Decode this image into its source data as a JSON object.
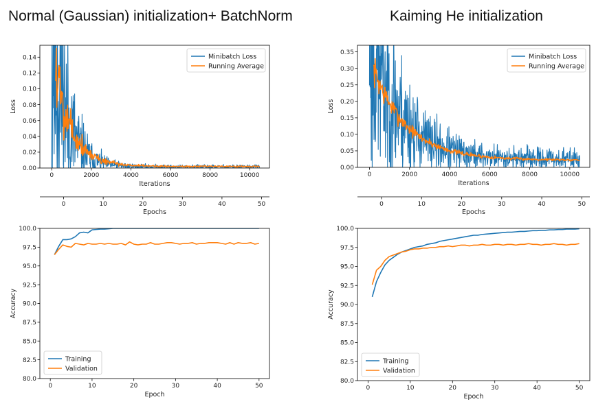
{
  "headings": {
    "left": "Normal (Gaussian) initialization+ BatchNorm",
    "right": "Kaiming He initialization"
  },
  "colors": {
    "blue": "#1f77b4",
    "orange": "#ff7f0e"
  },
  "chart_data": [
    {
      "id": "left-loss",
      "type": "line",
      "xlabel": "Iterations",
      "ylabel": "Loss",
      "xlim": [
        -600,
        11000
      ],
      "ylim": [
        0,
        0.155
      ],
      "xticks": [
        0,
        2000,
        4000,
        6000,
        8000,
        10000
      ],
      "yticks": [
        0.0,
        0.02,
        0.04,
        0.06,
        0.08,
        0.1,
        0.12,
        0.14
      ],
      "ytick_decimals": 2,
      "legend": "top-right",
      "secondary_xaxis": {
        "label": "Epochs",
        "xlim": [
          -6,
          52
        ],
        "ticks": [
          0,
          10,
          20,
          30,
          40,
          50
        ]
      },
      "series": [
        {
          "name": "Minibatch Loss",
          "color": "#1f77b4",
          "noisy": true,
          "x_start": 0,
          "x_end": 10500,
          "floor": 0.0,
          "amp": 0.19,
          "tau": 700,
          "tail": 0.0015,
          "noise": 0.9,
          "seed": 11
        },
        {
          "name": "Running Average",
          "color": "#ff7f0e",
          "noisy": false,
          "x_start": 200,
          "x_end": 10500,
          "floor": 0.0,
          "amp": 0.16,
          "tau": 850,
          "tail": 0.002,
          "noise": 0.25,
          "seed": 5
        }
      ]
    },
    {
      "id": "right-loss",
      "type": "line",
      "xlabel": "Iterations",
      "ylabel": "Loss",
      "xlim": [
        -600,
        11000
      ],
      "ylim": [
        0,
        0.37
      ],
      "xticks": [
        0,
        2000,
        4000,
        6000,
        8000,
        10000
      ],
      "yticks": [
        0.0,
        0.05,
        0.1,
        0.15,
        0.2,
        0.25,
        0.3,
        0.35
      ],
      "ytick_decimals": 2,
      "legend": "top-right",
      "secondary_xaxis": {
        "label": "Epochs",
        "xlim": [
          -6,
          52
        ],
        "ticks": [
          0,
          10,
          20,
          30,
          40,
          50
        ]
      },
      "series": [
        {
          "name": "Minibatch Loss",
          "color": "#1f77b4",
          "noisy": true,
          "x_start": 0,
          "x_end": 10500,
          "floor": 0.01,
          "amp": 0.38,
          "tau": 1500,
          "tail": 0.015,
          "noise": 0.6,
          "seed": 23
        },
        {
          "name": "Running Average",
          "color": "#ff7f0e",
          "noisy": false,
          "x_start": 200,
          "x_end": 10500,
          "floor": 0.01,
          "amp": 0.31,
          "tau": 1700,
          "tail": 0.012,
          "noise": 0.08,
          "seed": 7
        }
      ]
    },
    {
      "id": "left-acc",
      "type": "line",
      "xlabel": "Epoch",
      "ylabel": "Accuracy",
      "xlim": [
        -2.5,
        52.5
      ],
      "ylim": [
        80,
        100
      ],
      "xticks": [
        0,
        10,
        20,
        30,
        40,
        50
      ],
      "yticks": [
        80.0,
        82.5,
        85.0,
        87.5,
        90.0,
        92.5,
        95.0,
        97.5,
        100.0
      ],
      "ytick_decimals": 1,
      "legend": "bottom-left",
      "x": [
        1,
        2,
        3,
        4,
        5,
        6,
        7,
        8,
        9,
        10,
        11,
        12,
        13,
        14,
        15,
        16,
        17,
        18,
        19,
        20,
        21,
        22,
        23,
        24,
        25,
        26,
        27,
        28,
        29,
        30,
        31,
        32,
        33,
        34,
        35,
        36,
        37,
        38,
        39,
        40,
        41,
        42,
        43,
        44,
        45,
        46,
        47,
        48,
        49,
        50
      ],
      "series": [
        {
          "name": "Training",
          "color": "#1f77b4",
          "values": [
            96.5,
            97.6,
            98.5,
            98.5,
            98.6,
            98.9,
            99.4,
            99.5,
            99.4,
            99.8,
            99.85,
            99.9,
            99.9,
            99.95,
            100,
            100,
            100,
            100,
            100,
            100,
            100,
            100,
            100,
            100,
            100,
            100,
            100,
            100,
            100,
            100,
            100,
            100,
            100,
            100,
            100,
            100,
            100,
            100,
            100,
            100,
            100,
            100,
            100,
            100,
            100,
            100,
            100,
            100,
            100,
            100
          ]
        },
        {
          "name": "Validation",
          "color": "#ff7f0e",
          "values": [
            96.5,
            97.2,
            97.8,
            97.6,
            97.5,
            98.0,
            97.9,
            97.8,
            98.0,
            97.9,
            97.9,
            98.0,
            97.9,
            98.0,
            97.9,
            97.9,
            98.0,
            97.8,
            98.2,
            97.9,
            97.8,
            97.9,
            97.9,
            98.1,
            97.9,
            97.9,
            98.0,
            98.1,
            98.1,
            98.0,
            97.9,
            98.0,
            98.0,
            98.1,
            97.9,
            98.0,
            98.0,
            98.1,
            98.1,
            98.1,
            98.0,
            97.9,
            98.1,
            97.9,
            98.1,
            98.0,
            98.0,
            98.1,
            97.9,
            98.0
          ]
        }
      ]
    },
    {
      "id": "right-acc",
      "type": "line",
      "xlabel": "Epoch",
      "ylabel": "Accuracy",
      "xlim": [
        -2.5,
        52.5
      ],
      "ylim": [
        80,
        100
      ],
      "xticks": [
        0,
        10,
        20,
        30,
        40,
        50
      ],
      "yticks": [
        80.0,
        82.5,
        85.0,
        87.5,
        90.0,
        92.5,
        95.0,
        97.5,
        100.0
      ],
      "ytick_decimals": 1,
      "legend": "bottom-left",
      "x": [
        1,
        2,
        3,
        4,
        5,
        6,
        7,
        8,
        9,
        10,
        11,
        12,
        13,
        14,
        15,
        16,
        17,
        18,
        19,
        20,
        21,
        22,
        23,
        24,
        25,
        26,
        27,
        28,
        29,
        30,
        31,
        32,
        33,
        34,
        35,
        36,
        37,
        38,
        39,
        40,
        41,
        42,
        43,
        44,
        45,
        46,
        47,
        48,
        49,
        50
      ],
      "series": [
        {
          "name": "Training",
          "color": "#1f77b4",
          "values": [
            91.0,
            93.0,
            94.2,
            95.2,
            95.8,
            96.2,
            96.6,
            96.9,
            97.1,
            97.3,
            97.5,
            97.6,
            97.7,
            97.9,
            98.0,
            98.1,
            98.3,
            98.4,
            98.5,
            98.6,
            98.7,
            98.8,
            98.9,
            99.0,
            99.1,
            99.1,
            99.2,
            99.25,
            99.3,
            99.35,
            99.4,
            99.45,
            99.5,
            99.5,
            99.55,
            99.6,
            99.6,
            99.65,
            99.7,
            99.7,
            99.75,
            99.75,
            99.8,
            99.8,
            99.85,
            99.85,
            99.9,
            99.9,
            99.9,
            99.95
          ]
        },
        {
          "name": "Validation",
          "color": "#ff7f0e",
          "values": [
            92.6,
            94.5,
            95.0,
            95.8,
            96.3,
            96.5,
            96.7,
            96.9,
            97.0,
            97.2,
            97.3,
            97.3,
            97.4,
            97.4,
            97.5,
            97.5,
            97.6,
            97.6,
            97.7,
            97.6,
            97.7,
            97.8,
            97.8,
            97.7,
            97.8,
            97.8,
            97.9,
            97.8,
            97.8,
            97.9,
            97.9,
            97.8,
            97.9,
            97.9,
            97.8,
            97.9,
            97.9,
            98.0,
            97.9,
            97.9,
            97.8,
            97.9,
            97.9,
            98.0,
            97.9,
            97.9,
            97.8,
            97.9,
            97.9,
            98.0
          ]
        }
      ]
    }
  ]
}
